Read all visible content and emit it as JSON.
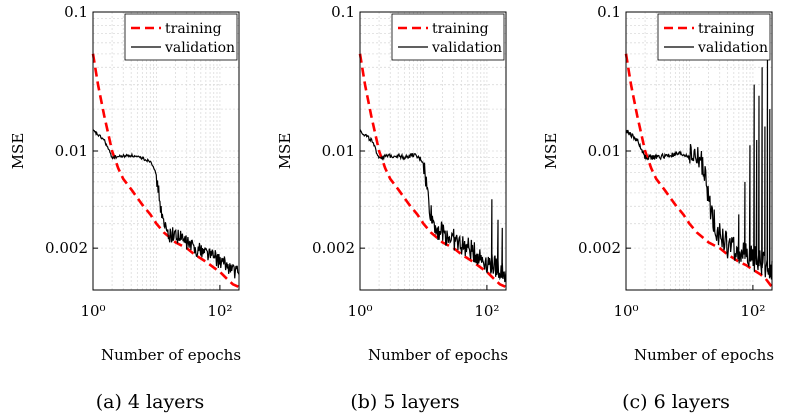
{
  "chart_data": [
    {
      "type": "line",
      "caption": "(a) 4 layers",
      "xlabel": "Number of epochs",
      "ylabel": "MSE",
      "xscale": "log",
      "yscale": "log",
      "xlim": [
        1,
        200
      ],
      "ylim": [
        0.001,
        0.1
      ],
      "xticks": [
        {
          "value": 1,
          "label": "10⁰"
        },
        {
          "value": 100,
          "label": "10²"
        }
      ],
      "yticks": [
        {
          "value": 0.1,
          "label": "0.1"
        },
        {
          "value": 0.01,
          "label": "0.01"
        },
        {
          "value": 0.002,
          "label": "0.002"
        }
      ],
      "grid": true,
      "legend": "top-right",
      "series": [
        {
          "name": "training",
          "color": "#ff0000",
          "style": "dashed",
          "x": [
            1,
            1.2,
            1.5,
            2,
            2.5,
            3,
            4,
            5,
            6,
            8,
            10,
            13,
            16,
            20,
            30,
            40,
            60,
            80,
            100,
            130,
            160,
            200
          ],
          "y": [
            0.05,
            0.03,
            0.018,
            0.01,
            0.0075,
            0.0063,
            0.0053,
            0.0046,
            0.0041,
            0.0035,
            0.003,
            0.0026,
            0.0024,
            0.0022,
            0.002,
            0.0018,
            0.0016,
            0.00145,
            0.00135,
            0.0012,
            0.0011,
            0.00105
          ]
        },
        {
          "name": "validation",
          "color": "#000000",
          "style": "solid",
          "noise": 0.07,
          "x": [
            1,
            1.5,
            2,
            3,
            4,
            5,
            6,
            7,
            8,
            9,
            10,
            11,
            12,
            13,
            14,
            15,
            16,
            20,
            30,
            40,
            60,
            80,
            100,
            130,
            160,
            200
          ],
          "y": [
            0.014,
            0.012,
            0.009,
            0.0092,
            0.0093,
            0.009,
            0.0089,
            0.0086,
            0.0085,
            0.0078,
            0.0065,
            0.0048,
            0.0036,
            0.0029,
            0.0028,
            0.0026,
            0.0025,
            0.0025,
            0.0022,
            0.002,
            0.0019,
            0.00175,
            0.0016,
            0.0015,
            0.0014,
            0.0013
          ]
        }
      ]
    },
    {
      "type": "line",
      "caption": "(b) 5 layers",
      "xlabel": "Number of epochs",
      "ylabel": "MSE",
      "xscale": "log",
      "yscale": "log",
      "xlim": [
        1,
        200
      ],
      "ylim": [
        0.001,
        0.1
      ],
      "xticks": [
        {
          "value": 1,
          "label": "10⁰"
        },
        {
          "value": 100,
          "label": "10²"
        }
      ],
      "yticks": [
        {
          "value": 0.1,
          "label": "0.1"
        },
        {
          "value": 0.01,
          "label": "0.01"
        },
        {
          "value": 0.002,
          "label": "0.002"
        }
      ],
      "grid": true,
      "legend": "top-right",
      "series": [
        {
          "name": "training",
          "color": "#ff0000",
          "style": "dashed",
          "x": [
            1,
            1.2,
            1.5,
            2,
            2.5,
            3,
            4,
            5,
            6,
            8,
            10,
            13,
            16,
            20,
            30,
            40,
            60,
            80,
            100,
            130,
            160,
            200
          ],
          "y": [
            0.05,
            0.03,
            0.018,
            0.01,
            0.0075,
            0.0063,
            0.0053,
            0.0046,
            0.0041,
            0.0035,
            0.003,
            0.0026,
            0.0024,
            0.0022,
            0.002,
            0.0018,
            0.0016,
            0.00145,
            0.00135,
            0.0012,
            0.0011,
            0.00105
          ]
        },
        {
          "name": "validation",
          "color": "#000000",
          "style": "solid",
          "noise": 0.1,
          "spikes": [
            {
              "x": 120,
              "y": 0.0045
            },
            {
              "x": 150,
              "y": 0.0032
            },
            {
              "x": 175,
              "y": 0.0028
            }
          ],
          "x": [
            1,
            1.5,
            2,
            3,
            4,
            5,
            6,
            7,
            8,
            9,
            10,
            11,
            12,
            13,
            14,
            15,
            16,
            20,
            30,
            40,
            60,
            80,
            100,
            130,
            160,
            200
          ],
          "y": [
            0.014,
            0.012,
            0.009,
            0.0092,
            0.0093,
            0.009,
            0.0092,
            0.0094,
            0.009,
            0.0088,
            0.0082,
            0.006,
            0.0045,
            0.0036,
            0.0032,
            0.003,
            0.0028,
            0.0026,
            0.0023,
            0.0021,
            0.0019,
            0.0017,
            0.0016,
            0.0015,
            0.0014,
            0.0013
          ]
        }
      ]
    },
    {
      "type": "line",
      "caption": "(c) 6 layers",
      "xlabel": "Number of epochs",
      "ylabel": "MSE",
      "xscale": "log",
      "yscale": "log",
      "xlim": [
        1,
        200
      ],
      "ylim": [
        0.001,
        0.1
      ],
      "xticks": [
        {
          "value": 1,
          "label": "10⁰"
        },
        {
          "value": 100,
          "label": "10²"
        }
      ],
      "yticks": [
        {
          "value": 0.1,
          "label": "0.1"
        },
        {
          "value": 0.01,
          "label": "0.01"
        },
        {
          "value": 0.002,
          "label": "0.002"
        }
      ],
      "grid": true,
      "legend": "top-right",
      "series": [
        {
          "name": "training",
          "color": "#ff0000",
          "style": "dashed",
          "x": [
            1,
            1.2,
            1.5,
            2,
            2.5,
            3,
            4,
            5,
            6,
            8,
            10,
            13,
            16,
            20,
            30,
            40,
            60,
            80,
            100,
            130,
            160,
            200
          ],
          "y": [
            0.05,
            0.03,
            0.018,
            0.01,
            0.0075,
            0.0063,
            0.0053,
            0.0046,
            0.0041,
            0.0035,
            0.003,
            0.0026,
            0.0024,
            0.0022,
            0.002,
            0.0018,
            0.0016,
            0.0015,
            0.0014,
            0.0013,
            0.0012,
            0.00105
          ]
        },
        {
          "name": "validation",
          "color": "#000000",
          "style": "solid",
          "noise": 0.12,
          "spikes": [
            {
              "x": 60,
              "y": 0.0035
            },
            {
              "x": 75,
              "y": 0.006
            },
            {
              "x": 90,
              "y": 0.011
            },
            {
              "x": 105,
              "y": 0.03
            },
            {
              "x": 115,
              "y": 0.012
            },
            {
              "x": 125,
              "y": 0.025
            },
            {
              "x": 140,
              "y": 0.04
            },
            {
              "x": 155,
              "y": 0.015
            },
            {
              "x": 170,
              "y": 0.05
            },
            {
              "x": 185,
              "y": 0.02
            }
          ],
          "x": [
            1,
            1.5,
            2,
            3,
            4,
            5,
            6,
            7,
            8,
            9,
            10,
            12,
            14,
            16,
            18,
            20,
            25,
            30,
            40,
            60,
            80,
            100,
            130,
            160,
            200
          ],
          "y": [
            0.014,
            0.012,
            0.009,
            0.009,
            0.0092,
            0.0093,
            0.0094,
            0.0095,
            0.0094,
            0.0093,
            0.0092,
            0.0091,
            0.0088,
            0.0083,
            0.006,
            0.0045,
            0.003,
            0.0025,
            0.0021,
            0.0019,
            0.0018,
            0.0017,
            0.0016,
            0.0015,
            0.0014
          ]
        }
      ]
    }
  ]
}
